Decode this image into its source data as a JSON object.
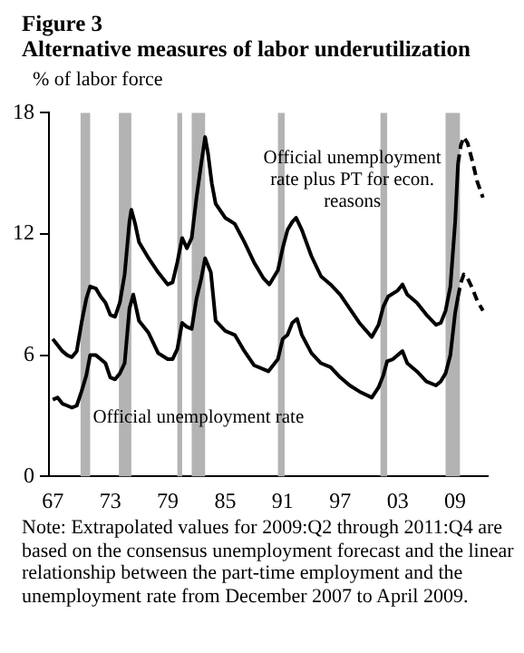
{
  "chart_data": {
    "type": "line",
    "title": "Figure 3",
    "subtitle": "Alternative measures of labor underutilization",
    "ylabel": "% of labor force",
    "xlim": [
      1966.6,
      2012.4
    ],
    "xticks": [
      {
        "value": 1967,
        "label": "67"
      },
      {
        "value": 1973,
        "label": "73"
      },
      {
        "value": 1979,
        "label": "79"
      },
      {
        "value": 1985,
        "label": "85"
      },
      {
        "value": 1991,
        "label": "91"
      },
      {
        "value": 1997,
        "label": "97"
      },
      {
        "value": 2003,
        "label": "03"
      },
      {
        "value": 2009,
        "label": "09"
      }
    ],
    "ylim": [
      0,
      18
    ],
    "yticks": [
      0,
      6,
      12,
      18
    ],
    "grid": false,
    "legend": false,
    "series": [
      {
        "name": "Official unemployment rate plus PT for econ. reasons",
        "color": "#000000",
        "line_style": "solid",
        "x": [
          1967,
          1967.5,
          1968,
          1968.5,
          1969,
          1969.5,
          1970,
          1970.5,
          1970.9,
          1971.5,
          1972,
          1972.5,
          1973,
          1973.5,
          1974,
          1974.5,
          1975,
          1975.2,
          1975.6,
          1976,
          1977,
          1978,
          1979,
          1979.5,
          1980,
          1980.5,
          1981,
          1981.5,
          1982,
          1982.5,
          1982.9,
          1983.2,
          1983.6,
          1984,
          1985,
          1986,
          1987,
          1988,
          1989,
          1989.6,
          1990.5,
          1991,
          1991.5,
          1992,
          1992.4,
          1993,
          1994,
          1995,
          1996,
          1997,
          1998,
          1999,
          2000.3,
          2001,
          2001.5,
          2002,
          2003,
          2003.5,
          2004,
          2005,
          2006,
          2007,
          2007.5,
          2008,
          2008.5,
          2009,
          2009.3
        ],
        "values": [
          6.8,
          6.5,
          6.2,
          6.0,
          5.9,
          6.2,
          7.6,
          8.8,
          9.4,
          9.3,
          8.9,
          8.6,
          8.0,
          7.9,
          8.6,
          10.0,
          12.6,
          13.2,
          12.5,
          11.6,
          10.8,
          10.1,
          9.5,
          9.6,
          10.6,
          11.8,
          11.3,
          11.8,
          13.8,
          15.5,
          16.8,
          16.0,
          14.5,
          13.5,
          12.8,
          12.5,
          11.6,
          10.6,
          9.8,
          9.5,
          10.2,
          11.3,
          12.2,
          12.6,
          12.8,
          12.2,
          10.9,
          9.9,
          9.5,
          9.0,
          8.3,
          7.6,
          6.9,
          7.5,
          8.4,
          8.9,
          9.2,
          9.5,
          9.0,
          8.6,
          8.0,
          7.5,
          7.6,
          8.2,
          9.4,
          12.6,
          15.5
        ]
      },
      {
        "color": "#000000",
        "line_style": "dashed",
        "x": [
          2009.3,
          2009.6,
          2009.9,
          2010.3,
          2010.8,
          2011.3,
          2011.9
        ],
        "values": [
          15.5,
          16.4,
          16.8,
          16.5,
          15.6,
          14.6,
          13.8
        ]
      },
      {
        "name": "Official unemployment rate",
        "color": "#000000",
        "line_style": "solid",
        "x": [
          1967,
          1967.5,
          1968,
          1968.5,
          1969,
          1969.5,
          1970,
          1970.5,
          1970.9,
          1971.5,
          1972,
          1972.5,
          1973,
          1973.5,
          1974,
          1974.5,
          1975,
          1975.4,
          1976,
          1977,
          1978,
          1979,
          1979.5,
          1980,
          1980.5,
          1981,
          1981.5,
          1982,
          1982.5,
          1982.9,
          1983.5,
          1984,
          1985,
          1986,
          1987,
          1988,
          1989,
          1989.5,
          1990.5,
          1991,
          1991.5,
          1992,
          1992.5,
          1993,
          1994,
          1995,
          1996,
          1997,
          1998,
          1999,
          2000.3,
          2001,
          2001.5,
          2001.9,
          2002.5,
          2003.5,
          2004,
          2005,
          2006,
          2007,
          2007.5,
          2008,
          2008.5,
          2009,
          2009.3
        ],
        "values": [
          3.8,
          3.9,
          3.6,
          3.5,
          3.4,
          3.5,
          4.2,
          5.0,
          6.0,
          6.0,
          5.8,
          5.6,
          4.9,
          4.8,
          5.1,
          5.6,
          8.3,
          9.0,
          7.7,
          7.1,
          6.1,
          5.8,
          5.8,
          6.3,
          7.6,
          7.4,
          7.3,
          8.8,
          9.8,
          10.8,
          10.1,
          7.7,
          7.2,
          7.0,
          6.2,
          5.5,
          5.3,
          5.2,
          5.8,
          6.8,
          7.0,
          7.6,
          7.8,
          7.0,
          6.1,
          5.6,
          5.4,
          4.9,
          4.5,
          4.2,
          3.9,
          4.4,
          5.0,
          5.7,
          5.8,
          6.2,
          5.6,
          5.2,
          4.7,
          4.5,
          4.7,
          5.1,
          6.0,
          8.1,
          8.9
        ]
      },
      {
        "color": "#000000",
        "line_style": "dashed",
        "x": [
          2009.3,
          2009.6,
          2009.9,
          2010.3,
          2010.8,
          2011.3,
          2011.9
        ],
        "values": [
          8.9,
          9.6,
          10.0,
          9.8,
          9.3,
          8.7,
          8.2
        ]
      }
    ],
    "bands": [
      {
        "axis": "x",
        "from": 1969.9,
        "to": 1970.9,
        "color": "#b3b3b3"
      },
      {
        "axis": "x",
        "from": 1973.9,
        "to": 1975.2,
        "color": "#b3b3b3"
      },
      {
        "axis": "x",
        "from": 1980.0,
        "to": 1980.5,
        "color": "#b3b3b3"
      },
      {
        "axis": "x",
        "from": 1981.5,
        "to": 1982.9,
        "color": "#b3b3b3"
      },
      {
        "axis": "x",
        "from": 1990.5,
        "to": 1991.2,
        "color": "#b3b3b3"
      },
      {
        "axis": "x",
        "from": 2001.2,
        "to": 2001.9,
        "color": "#b3b3b3"
      },
      {
        "axis": "x",
        "from": 2008.0,
        "to": 2009.5,
        "color": "#b3b3b3"
      }
    ],
    "annotations": [
      "Note: Extrapolated values for 2009:Q2 through 2011:Q4 are based on the consensus unemployment forecast and the linear relationship between the part-time employment and the unemployment rate from December 2007 to April 2009."
    ]
  }
}
